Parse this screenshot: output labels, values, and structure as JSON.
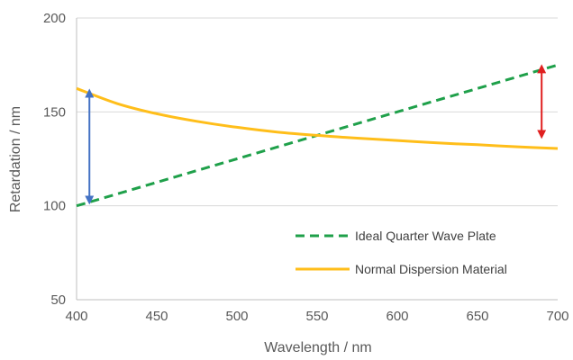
{
  "chart_data": {
    "type": "line",
    "title": "",
    "xlabel": "Wavelength / nm",
    "ylabel": "Retardation / nm",
    "xlim": [
      400,
      700
    ],
    "ylim": [
      50,
      200
    ],
    "x_ticks": [
      "400",
      "450",
      "500",
      "550",
      "600",
      "650",
      "700"
    ],
    "y_ticks": [
      "50",
      "100",
      "150",
      "200"
    ],
    "grid": "horizontal",
    "legend_position": "bottom-right",
    "series": [
      {
        "name": "Ideal Quarter Wave Plate",
        "color": "#1FA04A",
        "style": "dashed",
        "x": [
          400,
          450,
          500,
          550,
          600,
          650,
          700
        ],
        "y": [
          100,
          112.5,
          125,
          137.5,
          150,
          162.5,
          175
        ]
      },
      {
        "name": "Normal Dispersion Material",
        "color": "#FFBE1A",
        "style": "solid",
        "x": [
          400,
          425,
          450,
          475,
          500,
          525,
          550,
          575,
          600,
          625,
          650,
          675,
          700
        ],
        "y": [
          162.5,
          154.5,
          149,
          145,
          141.8,
          139.3,
          137.5,
          136,
          134.8,
          133.5,
          132.5,
          131.4,
          130.5
        ]
      }
    ],
    "annotations": [
      {
        "type": "double-arrow",
        "color": "#4472C4",
        "x": 408,
        "y_from": 103,
        "y_to": 160
      },
      {
        "type": "double-arrow",
        "color": "#E02020",
        "x": 690,
        "y_from": 138,
        "y_to": 173
      }
    ]
  }
}
